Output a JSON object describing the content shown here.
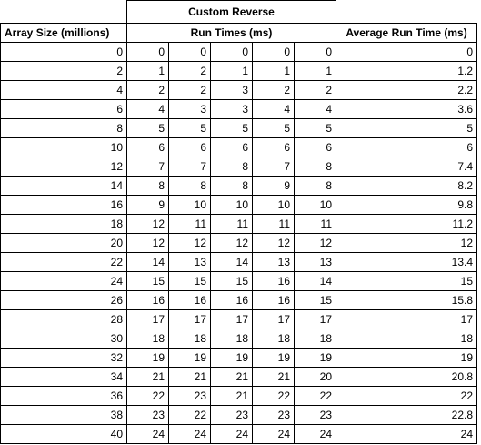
{
  "title": "Custom Reverse",
  "headers": {
    "array_size": "Array Size (millions)",
    "run_times": "Run Times (ms)",
    "average": "Average Run Time (ms)"
  },
  "rows": [
    {
      "size": "0",
      "runs": [
        "0",
        "0",
        "0",
        "0",
        "0"
      ],
      "avg": "0"
    },
    {
      "size": "2",
      "runs": [
        "1",
        "2",
        "1",
        "1",
        "1"
      ],
      "avg": "1.2"
    },
    {
      "size": "4",
      "runs": [
        "2",
        "2",
        "3",
        "2",
        "2"
      ],
      "avg": "2.2"
    },
    {
      "size": "6",
      "runs": [
        "4",
        "3",
        "3",
        "4",
        "4"
      ],
      "avg": "3.6"
    },
    {
      "size": "8",
      "runs": [
        "5",
        "5",
        "5",
        "5",
        "5"
      ],
      "avg": "5"
    },
    {
      "size": "10",
      "runs": [
        "6",
        "6",
        "6",
        "6",
        "6"
      ],
      "avg": "6"
    },
    {
      "size": "12",
      "runs": [
        "7",
        "7",
        "8",
        "7",
        "8"
      ],
      "avg": "7.4"
    },
    {
      "size": "14",
      "runs": [
        "8",
        "8",
        "8",
        "9",
        "8"
      ],
      "avg": "8.2"
    },
    {
      "size": "16",
      "runs": [
        "9",
        "10",
        "10",
        "10",
        "10"
      ],
      "avg": "9.8"
    },
    {
      "size": "18",
      "runs": [
        "12",
        "11",
        "11",
        "11",
        "11"
      ],
      "avg": "11.2"
    },
    {
      "size": "20",
      "runs": [
        "12",
        "12",
        "12",
        "12",
        "12"
      ],
      "avg": "12"
    },
    {
      "size": "22",
      "runs": [
        "14",
        "13",
        "14",
        "13",
        "13"
      ],
      "avg": "13.4"
    },
    {
      "size": "24",
      "runs": [
        "15",
        "15",
        "15",
        "16",
        "14"
      ],
      "avg": "15"
    },
    {
      "size": "26",
      "runs": [
        "16",
        "16",
        "16",
        "16",
        "15"
      ],
      "avg": "15.8"
    },
    {
      "size": "28",
      "runs": [
        "17",
        "17",
        "17",
        "17",
        "17"
      ],
      "avg": "17"
    },
    {
      "size": "30",
      "runs": [
        "18",
        "18",
        "18",
        "18",
        "18"
      ],
      "avg": "18"
    },
    {
      "size": "32",
      "runs": [
        "19",
        "19",
        "19",
        "19",
        "19"
      ],
      "avg": "19"
    },
    {
      "size": "34",
      "runs": [
        "21",
        "21",
        "21",
        "21",
        "20"
      ],
      "avg": "20.8"
    },
    {
      "size": "36",
      "runs": [
        "22",
        "23",
        "21",
        "22",
        "22"
      ],
      "avg": "22"
    },
    {
      "size": "38",
      "runs": [
        "23",
        "22",
        "23",
        "23",
        "23"
      ],
      "avg": "22.8"
    },
    {
      "size": "40",
      "runs": [
        "24",
        "24",
        "24",
        "24",
        "24"
      ],
      "avg": "24"
    }
  ]
}
